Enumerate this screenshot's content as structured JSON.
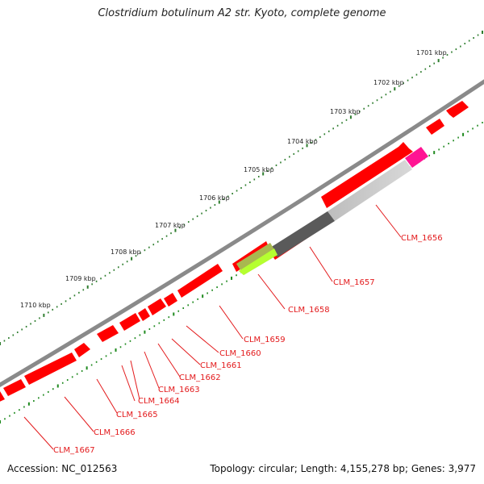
{
  "title": "Clostridium botulinum A2 str. Kyoto, complete genome",
  "footer": {
    "accession": "Accession: NC_012563",
    "summary": "Topology: circular; Length: 4,155,278 bp; Genes: 3,977"
  },
  "colors": {
    "backbone": "#8a8a8a",
    "forward_gene": "#ff0000",
    "tick_major": "#1f8a1f",
    "tick_minor": "#2e7d2e",
    "label": "#e31a1c"
  },
  "kbp_ticks": [
    "1701 kbp",
    "1702 kbp",
    "1703 kbp",
    "1704 kbp",
    "1705 kbp",
    "1706 kbp",
    "1707 kbp",
    "1708 kbp",
    "1709 kbp",
    "1710 kbp"
  ],
  "genes": [
    {
      "label": "CLM_1656",
      "color": "#ff1493"
    },
    {
      "label": "CLM_1657",
      "color": "#555555"
    },
    {
      "label": "CLM_1658",
      "color": "#9acd32"
    },
    {
      "label": "CLM_1659"
    },
    {
      "label": "CLM_1660"
    },
    {
      "label": "CLM_1661"
    },
    {
      "label": "CLM_1662"
    },
    {
      "label": "CLM_1663"
    },
    {
      "label": "CLM_1664"
    },
    {
      "label": "CLM_1665"
    },
    {
      "label": "CLM_1666"
    },
    {
      "label": "CLM_1667"
    }
  ]
}
